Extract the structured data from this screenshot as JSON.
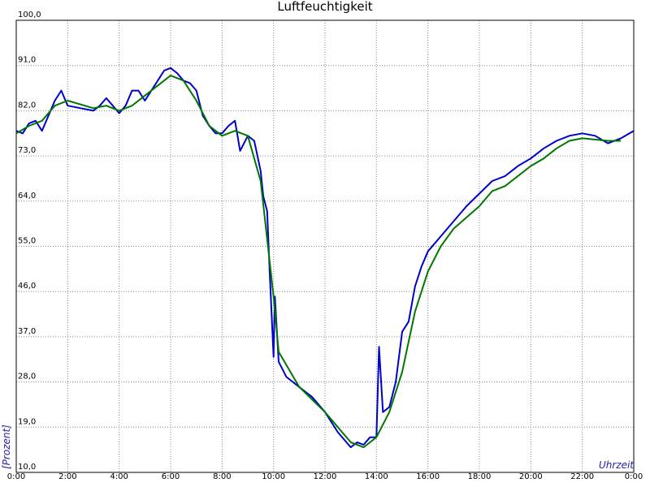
{
  "chart_data": {
    "type": "line",
    "title": "Luftfeuchtigkeit",
    "y_label": "[Prozent]",
    "x_label": "Uhrzeit",
    "xlim": [
      0,
      24
    ],
    "ylim": [
      10,
      100
    ],
    "grid": true,
    "xticks": [
      {
        "value": 0,
        "label": "0:00"
      },
      {
        "value": 2,
        "label": "2:00"
      },
      {
        "value": 4,
        "label": "4:00"
      },
      {
        "value": 6,
        "label": "6:00"
      },
      {
        "value": 8,
        "label": "8:00"
      },
      {
        "value": 10,
        "label": "10:00"
      },
      {
        "value": 12,
        "label": "12:00"
      },
      {
        "value": 14,
        "label": "14:00"
      },
      {
        "value": 16,
        "label": "16:00"
      },
      {
        "value": 18,
        "label": "18:00"
      },
      {
        "value": 20,
        "label": "20:00"
      },
      {
        "value": 22,
        "label": "22:00"
      },
      {
        "value": 24,
        "label": "0:00"
      }
    ],
    "yticks": [
      {
        "value": 10,
        "label": "10,0"
      },
      {
        "value": 19,
        "label": "19,0"
      },
      {
        "value": 28,
        "label": "28,0"
      },
      {
        "value": 37,
        "label": "37,0"
      },
      {
        "value": 46,
        "label": "46,0"
      },
      {
        "value": 55,
        "label": "55,0"
      },
      {
        "value": 64,
        "label": "64,0"
      },
      {
        "value": 73,
        "label": "73,0"
      },
      {
        "value": 82,
        "label": "82,0"
      },
      {
        "value": 91,
        "label": "91,0"
      },
      {
        "value": 100,
        "label": "100,0"
      }
    ],
    "series": [
      {
        "color": "#0000cc",
        "x": [
          0,
          0.25,
          0.5,
          0.75,
          1,
          1.25,
          1.5,
          1.75,
          2,
          2.5,
          3,
          3.25,
          3.5,
          3.75,
          4,
          4.25,
          4.5,
          4.75,
          5,
          5.25,
          5.5,
          5.75,
          6,
          6.25,
          6.5,
          6.75,
          7,
          7.25,
          7.5,
          7.75,
          8,
          8.25,
          8.5,
          8.7,
          9,
          9.25,
          9.5,
          9.6,
          9.75,
          9.85,
          10,
          10.05,
          10.2,
          10.5,
          11,
          11.5,
          12,
          12.5,
          13,
          13.25,
          13.5,
          13.75,
          14,
          14.1,
          14.25,
          14.5,
          14.75,
          15,
          15.25,
          15.5,
          15.75,
          16,
          16.5,
          17,
          17.5,
          18,
          18.5,
          19,
          19.5,
          20,
          20.5,
          21,
          21.5,
          22,
          22.5,
          23,
          23.5,
          24
        ],
        "values": [
          78,
          77.5,
          79.5,
          80,
          78,
          81,
          84,
          86,
          83,
          82.5,
          82,
          83,
          84.5,
          83,
          81.5,
          83,
          86,
          86,
          84,
          86,
          88,
          90,
          90.5,
          89.5,
          88,
          87.5,
          86,
          81,
          79,
          77.5,
          77.5,
          79,
          80,
          74,
          77,
          76,
          70,
          65,
          62,
          50,
          33,
          45,
          32,
          29,
          27,
          25,
          22,
          18,
          15,
          16,
          15.5,
          17,
          17,
          35,
          22,
          23,
          28,
          38,
          40,
          47,
          51,
          54,
          57,
          60,
          63,
          65.5,
          68,
          69,
          71,
          72.5,
          74.5,
          76,
          77,
          77.5,
          77,
          75.5,
          76.5,
          78
        ]
      },
      {
        "color": "#007700",
        "x": [
          0,
          0.5,
          1,
          1.5,
          2,
          3,
          3.5,
          4,
          4.5,
          5,
          6,
          6.5,
          7,
          7.5,
          8,
          8.5,
          9,
          9.5,
          10,
          10.2,
          11,
          12,
          13,
          13.5,
          14,
          14.5,
          15,
          15.5,
          16,
          16.5,
          17,
          18,
          18.5,
          19,
          20,
          20.5,
          21,
          21.5,
          22,
          23,
          23.5
        ],
        "values": [
          77.5,
          79,
          80,
          83,
          84,
          82.5,
          83,
          82,
          83,
          85,
          89,
          88,
          84,
          79,
          77,
          78,
          77,
          68,
          45,
          34,
          27,
          22,
          16,
          15,
          17,
          22,
          30,
          42,
          50,
          55,
          58.5,
          63,
          66,
          67,
          71,
          72.5,
          74.5,
          76,
          76.5,
          76,
          76
        ]
      }
    ]
  }
}
